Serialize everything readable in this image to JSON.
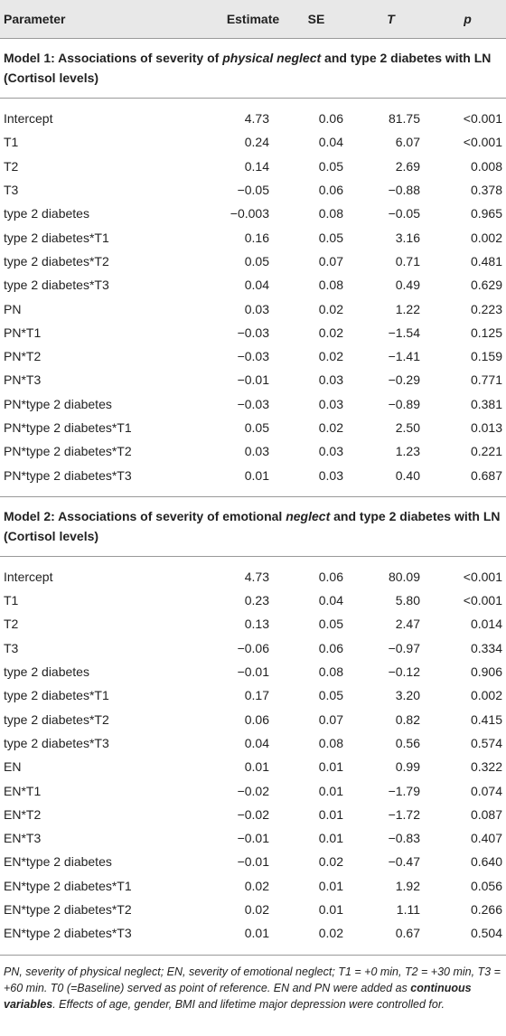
{
  "header": [
    "Parameter",
    "Estimate",
    "SE",
    "T",
    "p"
  ],
  "sections": [
    {
      "title": [
        "Model 1: Associations of severity of ",
        "physical neglect",
        " and type 2 diabetes with LN (Cortisol levels)"
      ],
      "rows": [
        [
          "Intercept",
          "4.73",
          "0.06",
          "81.75",
          "<0.001"
        ],
        [
          "T1",
          "0.24",
          "0.04",
          "6.07",
          "<0.001"
        ],
        [
          "T2",
          "0.14",
          "0.05",
          "2.69",
          "0.008"
        ],
        [
          "T3",
          "−0.05",
          "0.06",
          "−0.88",
          "0.378"
        ],
        [
          "type 2 diabetes",
          "−0.003",
          "0.08",
          "−0.05",
          "0.965"
        ],
        [
          "type 2 diabetes*T1",
          "0.16",
          "0.05",
          "3.16",
          "0.002"
        ],
        [
          "type 2 diabetes*T2",
          "0.05",
          "0.07",
          "0.71",
          "0.481"
        ],
        [
          "type 2 diabetes*T3",
          "0.04",
          "0.08",
          "0.49",
          "0.629"
        ],
        [
          "PN",
          "0.03",
          "0.02",
          "1.22",
          "0.223"
        ],
        [
          "PN*T1",
          "−0.03",
          "0.02",
          "−1.54",
          "0.125"
        ],
        [
          "PN*T2",
          "−0.03",
          "0.02",
          "−1.41",
          "0.159"
        ],
        [
          "PN*T3",
          "−0.01",
          "0.03",
          "−0.29",
          "0.771"
        ],
        [
          "PN*type 2 diabetes",
          "−0.03",
          "0.03",
          "−0.89",
          "0.381"
        ],
        [
          "PN*type 2 diabetes*T1",
          "0.05",
          "0.02",
          "2.50",
          "0.013"
        ],
        [
          "PN*type 2 diabetes*T2",
          "0.03",
          "0.03",
          "1.23",
          "0.221"
        ],
        [
          "PN*type 2 diabetes*T3",
          "0.01",
          "0.03",
          "0.40",
          "0.687"
        ]
      ]
    },
    {
      "title": [
        "Model 2: Associations of severity of emotional ",
        "neglect",
        " and type 2 diabetes with LN (Cortisol levels)"
      ],
      "rows": [
        [
          "Intercept",
          "4.73",
          "0.06",
          "80.09",
          "<0.001"
        ],
        [
          "T1",
          "0.23",
          "0.04",
          "5.80",
          "<0.001"
        ],
        [
          "T2",
          "0.13",
          "0.05",
          "2.47",
          "0.014"
        ],
        [
          "T3",
          "−0.06",
          "0.06",
          "−0.97",
          "0.334"
        ],
        [
          "type 2 diabetes",
          "−0.01",
          "0.08",
          "−0.12",
          "0.906"
        ],
        [
          "type 2 diabetes*T1",
          "0.17",
          "0.05",
          "3.20",
          "0.002"
        ],
        [
          "type 2 diabetes*T2",
          "0.06",
          "0.07",
          "0.82",
          "0.415"
        ],
        [
          "type 2 diabetes*T3",
          "0.04",
          "0.08",
          "0.56",
          "0.574"
        ],
        [
          "EN",
          "0.01",
          "0.01",
          "0.99",
          "0.322"
        ],
        [
          "EN*T1",
          "−0.02",
          "0.01",
          "−1.79",
          "0.074"
        ],
        [
          "EN*T2",
          "−0.02",
          "0.01",
          "−1.72",
          "0.087"
        ],
        [
          "EN*T3",
          "−0.01",
          "0.01",
          "−0.83",
          "0.407"
        ],
        [
          "EN*type 2 diabetes",
          "−0.01",
          "0.02",
          "−0.47",
          "0.640"
        ],
        [
          "EN*type 2 diabetes*T1",
          "0.02",
          "0.01",
          "1.92",
          "0.056"
        ],
        [
          "EN*type 2 diabetes*T2",
          "0.02",
          "0.01",
          "1.11",
          "0.266"
        ],
        [
          "EN*type 2 diabetes*T3",
          "0.01",
          "0.02",
          "0.67",
          "0.504"
        ]
      ]
    }
  ],
  "footnote": [
    "PN, severity of physical neglect; EN, severity of emotional neglect; T1 = +0 min, T2 = +30 min, T3 = +60 min. T0 (=Baseline) served as point of reference. EN and PN were added as ",
    "continuous variables",
    ". Effects of age, gender, BMI and lifetime major depression were controlled for."
  ]
}
